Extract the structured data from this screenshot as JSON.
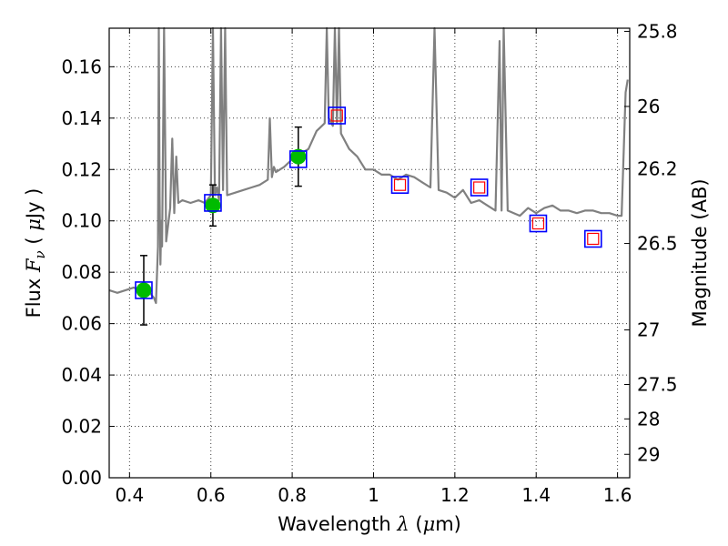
{
  "chart_data": {
    "type": "scatter",
    "xlabel_text": "Wavelength ",
    "xlabel_symbol": "λ",
    "xlabel_unit_open": "(",
    "xlabel_unit_mu": "μ",
    "xlabel_unit_rest": "m)",
    "ylabel_text": "Flux ",
    "ylabel_symbol": "F",
    "ylabel_sub": "ν",
    "ylabel_unit_open": "( ",
    "ylabel_unit_mu": "μ",
    "ylabel_unit_rest": "Jy )",
    "y2label": "Magnitude (AB)",
    "xlim": [
      0.35,
      1.63
    ],
    "ylim": [
      0.0,
      0.175
    ],
    "xticks": [
      0.4,
      0.6,
      0.8,
      1.0,
      1.2,
      1.4,
      1.6
    ],
    "xtick_labels": [
      "0.4",
      "0.6",
      "0.8",
      "1",
      "1.2",
      "1.4",
      "1.6"
    ],
    "yticks": [
      0.0,
      0.02,
      0.04,
      0.06,
      0.08,
      0.1,
      0.12,
      0.14,
      0.16
    ],
    "ytick_labels": [
      "0.00",
      "0.02",
      "0.04",
      "0.06",
      "0.08",
      "0.10",
      "0.12",
      "0.14",
      "0.16"
    ],
    "y2ticks": [
      25.8,
      26,
      26.2,
      26.5,
      27,
      27.5,
      28,
      29
    ],
    "y2tick_labels": [
      "25.8",
      "26",
      "26.2",
      "26.5",
      "27",
      "27.5",
      "28",
      "29"
    ],
    "grid": true,
    "series": [
      {
        "kind": "line",
        "color": "#808080",
        "x": [
          0.35,
          0.37,
          0.39,
          0.41,
          0.43,
          0.45,
          0.46,
          0.465,
          0.47,
          0.472,
          0.474,
          0.476,
          0.478,
          0.48,
          0.485,
          0.49,
          0.5,
          0.505,
          0.51,
          0.515,
          0.52,
          0.53,
          0.55,
          0.57,
          0.585,
          0.6,
          0.605,
          0.61,
          0.615,
          0.62,
          0.625,
          0.63,
          0.635,
          0.64,
          0.66,
          0.68,
          0.7,
          0.72,
          0.74,
          0.745,
          0.75,
          0.755,
          0.76,
          0.78,
          0.8,
          0.82,
          0.84,
          0.86,
          0.88,
          0.885,
          0.89,
          0.9,
          0.905,
          0.91,
          0.915,
          0.92,
          0.94,
          0.96,
          0.98,
          1.0,
          1.02,
          1.04,
          1.06,
          1.08,
          1.1,
          1.12,
          1.14,
          1.15,
          1.16,
          1.18,
          1.2,
          1.22,
          1.24,
          1.26,
          1.28,
          1.3,
          1.31,
          1.315,
          1.32,
          1.33,
          1.36,
          1.38,
          1.4,
          1.42,
          1.44,
          1.46,
          1.48,
          1.5,
          1.52,
          1.54,
          1.56,
          1.58,
          1.6,
          1.61,
          1.62,
          1.625
        ],
        "y": [
          0.073,
          0.072,
          0.073,
          0.074,
          0.073,
          0.072,
          0.07,
          0.068,
          0.09,
          0.175,
          0.11,
          0.083,
          0.1,
          0.09,
          0.175,
          0.092,
          0.105,
          0.132,
          0.103,
          0.125,
          0.107,
          0.108,
          0.107,
          0.108,
          0.107,
          0.11,
          0.175,
          0.11,
          0.113,
          0.108,
          0.175,
          0.112,
          0.175,
          0.11,
          0.111,
          0.112,
          0.113,
          0.114,
          0.116,
          0.14,
          0.117,
          0.121,
          0.119,
          0.121,
          0.124,
          0.126,
          0.128,
          0.135,
          0.138,
          0.175,
          0.14,
          0.137,
          0.175,
          0.138,
          0.175,
          0.134,
          0.128,
          0.125,
          0.12,
          0.12,
          0.118,
          0.118,
          0.116,
          0.118,
          0.117,
          0.115,
          0.113,
          0.175,
          0.112,
          0.111,
          0.109,
          0.112,
          0.107,
          0.108,
          0.106,
          0.104,
          0.17,
          0.104,
          0.175,
          0.104,
          0.102,
          0.105,
          0.103,
          0.105,
          0.106,
          0.104,
          0.104,
          0.103,
          0.104,
          0.104,
          0.103,
          0.103,
          0.102,
          0.102,
          0.15,
          0.155
        ]
      },
      {
        "kind": "measured",
        "color": "#00bb00",
        "x": [
          0.435,
          0.605,
          0.815
        ],
        "y": [
          0.073,
          0.106,
          0.125
        ],
        "yerr": [
          0.0135,
          0.008,
          0.0115
        ]
      },
      {
        "kind": "model_box",
        "color": "#0000ff",
        "x": [
          0.435,
          0.605,
          0.815,
          0.91,
          1.065,
          1.26,
          1.405,
          1.54
        ],
        "y": [
          0.073,
          0.107,
          0.124,
          0.141,
          0.114,
          0.113,
          0.099,
          0.093
        ]
      },
      {
        "kind": "inner_square",
        "color": "#ff0000",
        "x": [
          0.91,
          1.065,
          1.26,
          1.405,
          1.54
        ],
        "y": [
          0.141,
          0.114,
          0.113,
          0.099,
          0.093
        ]
      }
    ]
  }
}
